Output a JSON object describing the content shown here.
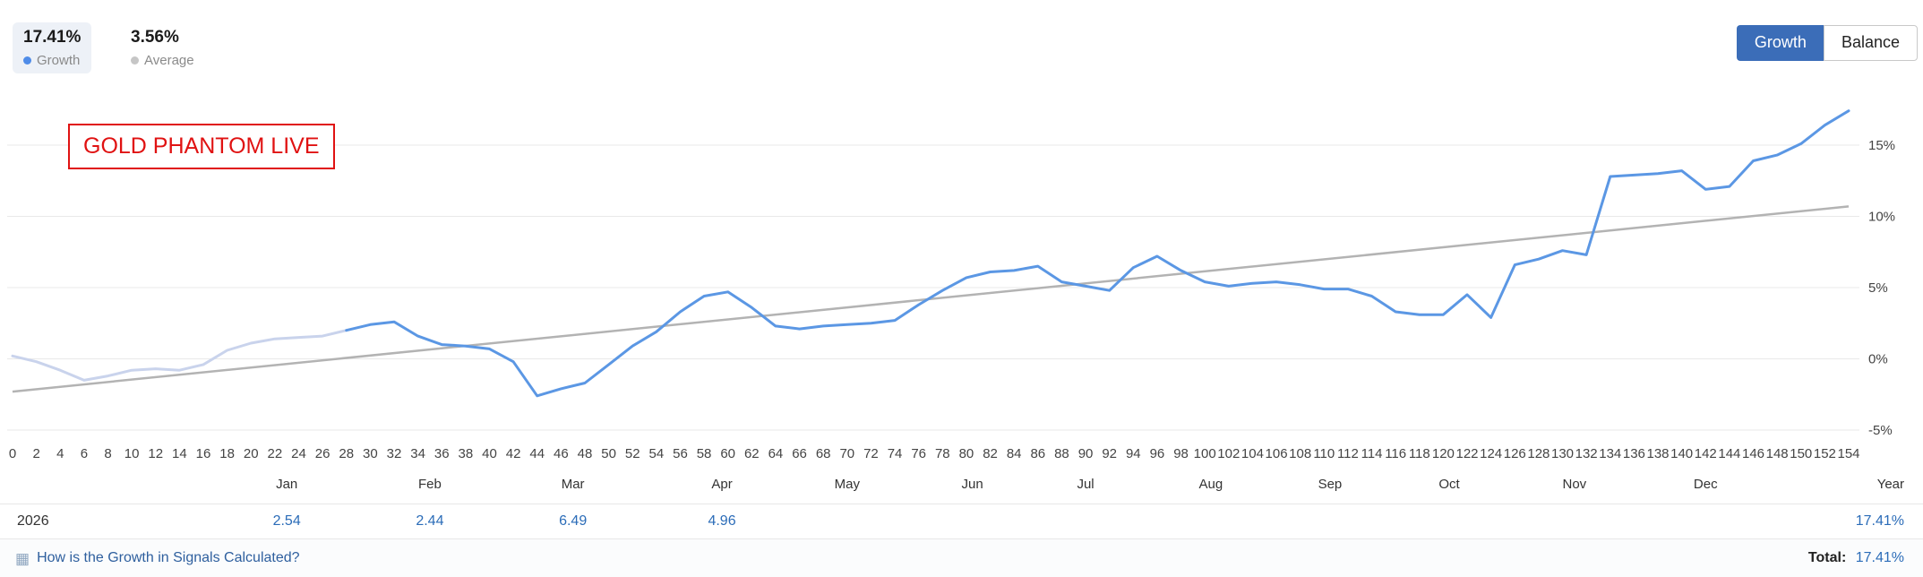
{
  "header": {
    "stats": [
      {
        "value": "17.41%",
        "label": "Growth",
        "dot_color": "#4f8ce8"
      },
      {
        "value": "3.56%",
        "label": "Average",
        "dot_color": "#c6c6c6"
      }
    ],
    "view_buttons": [
      {
        "label": "Growth",
        "active": true
      },
      {
        "label": "Balance",
        "active": false
      }
    ]
  },
  "annotation": {
    "text": "GOLD PHANTOM LIVE",
    "color": "#e01212"
  },
  "chart_data": {
    "type": "line",
    "xlabel": "trades",
    "ylabel": "growth %",
    "x_range": [
      0,
      154
    ],
    "ylim": [
      -5,
      17.5
    ],
    "grid": "horizontal only",
    "y_axis_side": "right",
    "x_ticks": [
      0,
      2,
      4,
      6,
      8,
      10,
      12,
      14,
      16,
      18,
      20,
      22,
      24,
      26,
      28,
      30,
      32,
      34,
      36,
      38,
      40,
      42,
      44,
      46,
      48,
      50,
      52,
      54,
      56,
      58,
      60,
      62,
      64,
      66,
      68,
      70,
      72,
      74,
      76,
      78,
      80,
      82,
      84,
      86,
      88,
      90,
      92,
      94,
      96,
      98,
      100,
      102,
      104,
      106,
      108,
      110,
      112,
      114,
      116,
      118,
      120,
      122,
      124,
      126,
      128,
      130,
      132,
      134,
      136,
      138,
      140,
      142,
      144,
      146,
      148,
      150,
      152,
      154
    ],
    "y_ticks": [
      {
        "label": "15%",
        "value": 15
      },
      {
        "label": "10%",
        "value": 10
      },
      {
        "label": "5%",
        "value": 5
      },
      {
        "label": "0%",
        "value": 0
      },
      {
        "label": "-5%",
        "value": -5
      }
    ],
    "months": [
      {
        "label": "Jan",
        "t": 23
      },
      {
        "label": "Feb",
        "t": 35
      },
      {
        "label": "Mar",
        "t": 47
      },
      {
        "label": "Apr",
        "t": 59.5
      },
      {
        "label": "May",
        "t": 70
      },
      {
        "label": "Jun",
        "t": 80.5
      },
      {
        "label": "Jul",
        "t": 90
      },
      {
        "label": "Aug",
        "t": 100.5
      },
      {
        "label": "Sep",
        "t": 110.5
      },
      {
        "label": "Oct",
        "t": 120.5
      },
      {
        "label": "Nov",
        "t": 131
      },
      {
        "label": "Dec",
        "t": 142
      }
    ],
    "year_axis_label": "Year",
    "series": [
      {
        "key": "growth-early-line",
        "name": "Growth (earlier period)",
        "color": "#c9d3ec",
        "x_start": 0,
        "x_step": 2,
        "y": [
          0.2,
          -0.2,
          -0.8,
          -1.5,
          -1.2,
          -0.8,
          -0.7,
          -0.8,
          -0.4,
          0.6,
          1.1,
          1.4,
          1.5,
          1.6,
          2.0
        ]
      },
      {
        "key": "growth-line",
        "name": "Growth",
        "color": "#5b97e4",
        "x_start": 28,
        "x_step": 2,
        "y": [
          2.0,
          2.4,
          2.6,
          1.6,
          1.0,
          0.9,
          0.7,
          -0.2,
          -2.6,
          -2.1,
          -1.7,
          -0.4,
          0.9,
          1.9,
          3.3,
          4.4,
          4.7,
          3.6,
          2.3,
          2.1,
          2.3,
          2.4,
          2.5,
          2.7,
          3.8,
          4.8,
          5.7,
          6.1,
          6.2,
          6.5,
          5.4,
          5.1,
          4.8,
          6.4,
          7.2,
          6.2,
          5.4,
          5.1,
          5.3,
          5.4,
          5.2,
          4.9,
          4.9,
          4.4,
          3.3,
          3.1,
          3.1,
          4.5,
          2.9,
          6.6,
          7.0,
          7.6,
          7.3,
          12.8,
          12.9,
          13.0,
          13.2,
          11.9,
          12.1,
          13.9,
          14.3,
          15.1,
          16.4,
          17.41
        ]
      }
    ],
    "trend": {
      "key": "trend-line",
      "name": "Average trend",
      "color": "#b3b3b3",
      "points": [
        [
          0,
          -2.3
        ],
        [
          154,
          10.7
        ]
      ]
    },
    "theme": {
      "grid": "#e9e9e9",
      "axis_text": "#444",
      "month_text": "#333"
    }
  },
  "table": {
    "year": "2026",
    "values": [
      "2.54",
      "2.44",
      "6.49",
      "4.96",
      "",
      "",
      "",
      "",
      "",
      "",
      "",
      ""
    ],
    "total": "17.41%"
  },
  "footer": {
    "icon": "▦",
    "link_label": "How is the Growth in Signals Calculated?",
    "total_label": "Total:",
    "total_value": "17.41%"
  }
}
